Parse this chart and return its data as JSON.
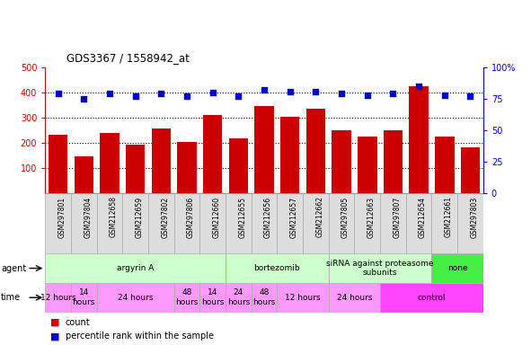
{
  "title": "GDS3367 / 1558942_at",
  "samples": [
    "GSM297801",
    "GSM297804",
    "GSM212658",
    "GSM212659",
    "GSM297802",
    "GSM297806",
    "GSM212660",
    "GSM212655",
    "GSM212656",
    "GSM212657",
    "GSM212662",
    "GSM297805",
    "GSM212663",
    "GSM297807",
    "GSM212654",
    "GSM212661",
    "GSM297803"
  ],
  "counts": [
    233,
    148,
    240,
    193,
    258,
    205,
    312,
    216,
    345,
    305,
    336,
    249,
    224,
    251,
    425,
    226,
    183
  ],
  "percentiles": [
    79,
    75,
    79,
    77,
    79,
    77,
    80,
    77,
    82,
    81,
    81,
    79,
    78,
    79,
    85,
    78,
    77
  ],
  "ylim_left": [
    0,
    500
  ],
  "ylim_right": [
    0,
    100
  ],
  "yticks_left": [
    100,
    200,
    300,
    400,
    500
  ],
  "yticks_right": [
    0,
    25,
    50,
    75,
    100
  ],
  "bar_color": "#cc0000",
  "dot_color": "#0000cc",
  "agent_spans": [
    {
      "label": "argyrin A",
      "start": 0,
      "end": 7,
      "color": "#ccffcc"
    },
    {
      "label": "bortezomib",
      "start": 7,
      "end": 11,
      "color": "#ccffcc"
    },
    {
      "label": "siRNA against proteasome\nsubunits",
      "start": 11,
      "end": 15,
      "color": "#ccffcc"
    },
    {
      "label": "none",
      "start": 15,
      "end": 17,
      "color": "#44ee44"
    }
  ],
  "time_spans": [
    {
      "label": "12 hours",
      "start": 0,
      "end": 1,
      "color": "#ff99ff"
    },
    {
      "label": "14\nhours",
      "start": 1,
      "end": 2,
      "color": "#ff99ff"
    },
    {
      "label": "24 hours",
      "start": 2,
      "end": 5,
      "color": "#ff99ff"
    },
    {
      "label": "48\nhours",
      "start": 5,
      "end": 6,
      "color": "#ff99ff"
    },
    {
      "label": "14\nhours",
      "start": 6,
      "end": 7,
      "color": "#ff99ff"
    },
    {
      "label": "24\nhours",
      "start": 7,
      "end": 8,
      "color": "#ff99ff"
    },
    {
      "label": "48\nhours",
      "start": 8,
      "end": 9,
      "color": "#ff99ff"
    },
    {
      "label": "12 hours",
      "start": 9,
      "end": 11,
      "color": "#ff99ff"
    },
    {
      "label": "24 hours",
      "start": 11,
      "end": 13,
      "color": "#ff99ff"
    },
    {
      "label": "control",
      "start": 13,
      "end": 17,
      "color": "#ff44ff"
    }
  ],
  "sample_bg_color": "#dddddd",
  "grid_color": "#000000",
  "grid_yticks": [
    100,
    200,
    300,
    400
  ]
}
